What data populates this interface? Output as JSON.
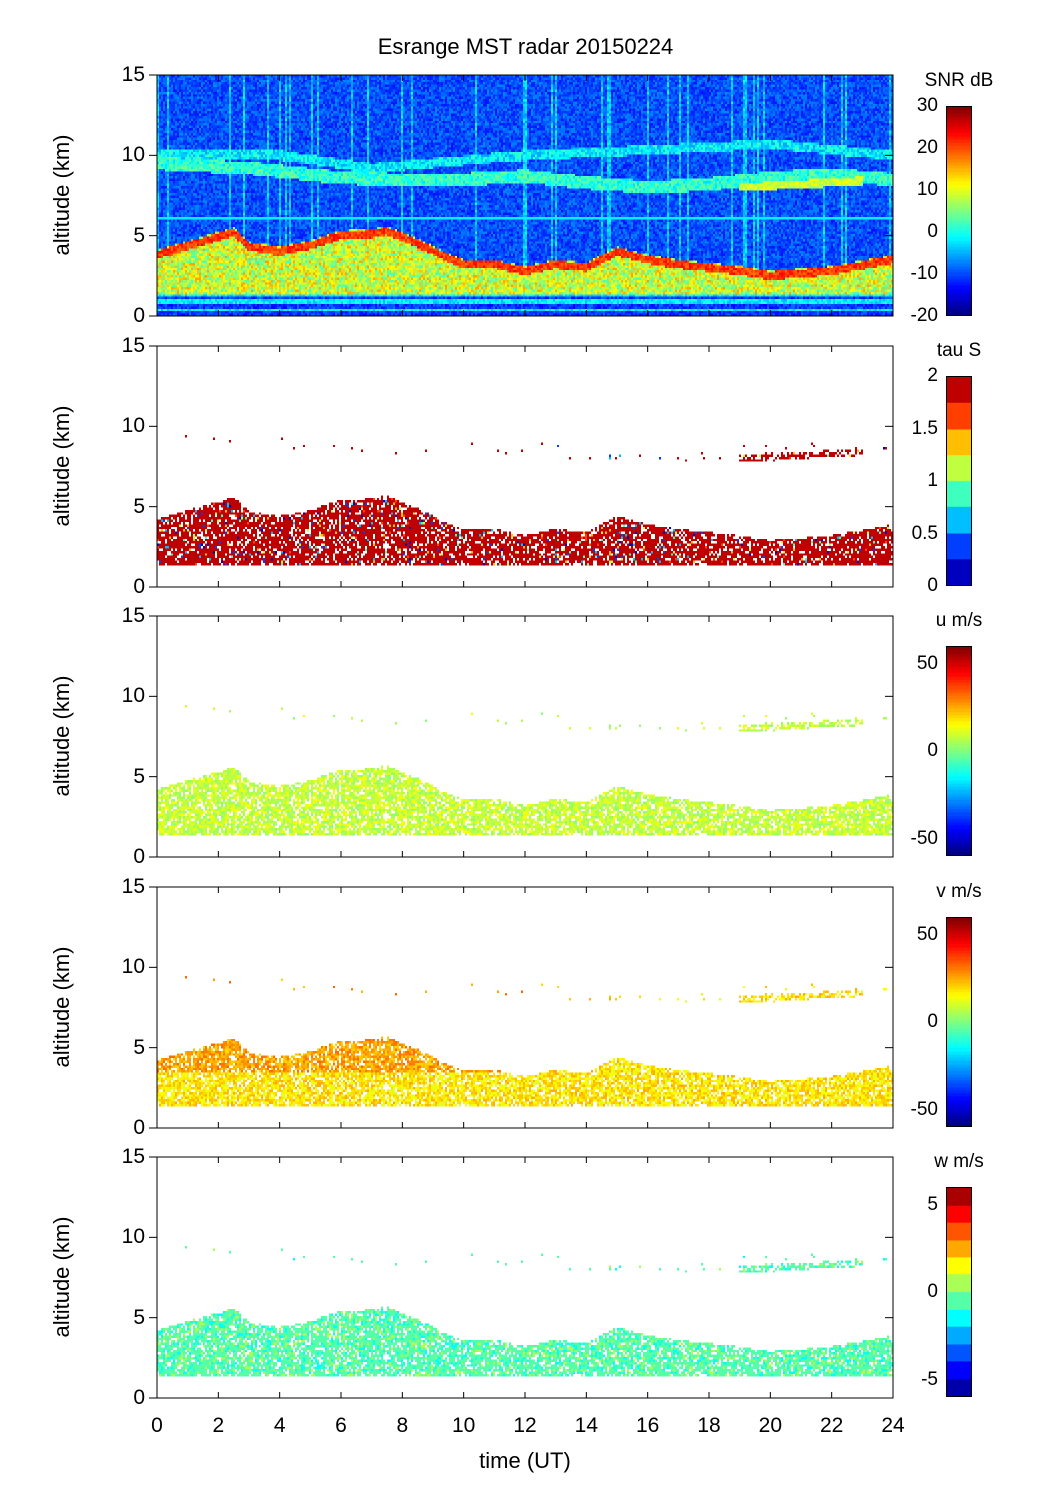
{
  "chart_data": {
    "type": "heatmap",
    "title": "Esrange MST radar 20150224",
    "xlabel": "time (UT)",
    "xlim": [
      0,
      24
    ],
    "xticks": [
      "0",
      "2",
      "4",
      "6",
      "8",
      "10",
      "12",
      "14",
      "16",
      "18",
      "20",
      "22",
      "24"
    ],
    "ylabel": "altitude (km)",
    "ylim": [
      0,
      15
    ],
    "yticks": [
      "0",
      "5",
      "10",
      "15"
    ],
    "panels": [
      {
        "quantity": "SNR",
        "colorbar_label": "SNR dB",
        "clim": [
          -20,
          30
        ],
        "cticks": [
          {
            "v": 30,
            "t": "30"
          },
          {
            "v": 20,
            "t": "20"
          },
          {
            "v": 10,
            "t": "10"
          },
          {
            "v": 0,
            "t": "0"
          },
          {
            "v": -10,
            "t": "-10"
          },
          {
            "v": -20,
            "t": "-20"
          }
        ],
        "levels": 0,
        "typical": -12
      },
      {
        "quantity": "tau",
        "colorbar_label": "tau S",
        "clim": [
          0,
          2
        ],
        "cticks": [
          {
            "v": 2,
            "t": "2"
          },
          {
            "v": 1.5,
            "t": "1.5"
          },
          {
            "v": 1,
            "t": "1"
          },
          {
            "v": 0.5,
            "t": "0.5"
          },
          {
            "v": 0,
            "t": "0"
          }
        ],
        "levels": 8,
        "typical": 2
      },
      {
        "quantity": "u",
        "colorbar_label": "u m/s",
        "clim": [
          -60,
          60
        ],
        "cticks": [
          {
            "v": 50,
            "t": "50"
          },
          {
            "v": 0,
            "t": "0"
          },
          {
            "v": -50,
            "t": "-50"
          }
        ],
        "levels": 0,
        "typical": 8
      },
      {
        "quantity": "v",
        "colorbar_label": "v m/s",
        "clim": [
          -60,
          60
        ],
        "cticks": [
          {
            "v": 50,
            "t": "50"
          },
          {
            "v": 0,
            "t": "0"
          },
          {
            "v": -50,
            "t": "-50"
          }
        ],
        "levels": 0,
        "typical": 18
      },
      {
        "quantity": "w",
        "colorbar_label": "w m/s",
        "clim": [
          -6,
          6
        ],
        "cticks": [
          {
            "v": 5,
            "t": "5"
          },
          {
            "v": 0,
            "t": "0"
          },
          {
            "v": -5,
            "t": "-5"
          }
        ],
        "levels": 12,
        "typical": -0.5
      }
    ],
    "echo_layers_km": {
      "main_layer": [
        [
          0,
          3.8
        ],
        [
          2.5,
          5.2
        ],
        [
          3,
          4.3
        ],
        [
          4,
          4.0
        ],
        [
          5,
          4.4
        ],
        [
          6,
          5.0
        ],
        [
          7,
          5.1
        ],
        [
          7.5,
          5.3
        ],
        [
          8.5,
          4.5
        ],
        [
          9.5,
          3.6
        ],
        [
          10,
          3.2
        ],
        [
          11,
          3.2
        ],
        [
          12,
          2.8
        ],
        [
          13,
          3.2
        ],
        [
          14,
          3.0
        ],
        [
          15,
          4.0
        ],
        [
          16,
          3.5
        ],
        [
          17,
          3.2
        ],
        [
          18,
          3.0
        ],
        [
          19,
          2.8
        ],
        [
          20,
          2.5
        ],
        [
          22,
          2.8
        ],
        [
          24,
          3.5
        ]
      ],
      "tropopause_layer": [
        [
          0,
          9.5
        ],
        [
          3,
          9.2
        ],
        [
          6,
          8.6
        ],
        [
          8,
          8.5
        ],
        [
          10,
          8.5
        ],
        [
          12,
          8.7
        ],
        [
          14,
          8.3
        ],
        [
          16,
          8.0
        ],
        [
          18,
          8.2
        ],
        [
          20,
          8.6
        ],
        [
          22,
          8.8
        ],
        [
          24,
          8.5
        ]
      ],
      "upper_layer": [
        [
          0,
          10
        ],
        [
          4,
          10
        ],
        [
          7,
          9.2
        ],
        [
          12,
          10
        ],
        [
          18,
          10.5
        ],
        [
          20,
          10.7
        ],
        [
          24,
          10
        ]
      ],
      "upper_echo_segment": [
        [
          19,
          8.0
        ],
        [
          23,
          8.4
        ]
      ],
      "boundary_layer_base": 1.5
    }
  }
}
